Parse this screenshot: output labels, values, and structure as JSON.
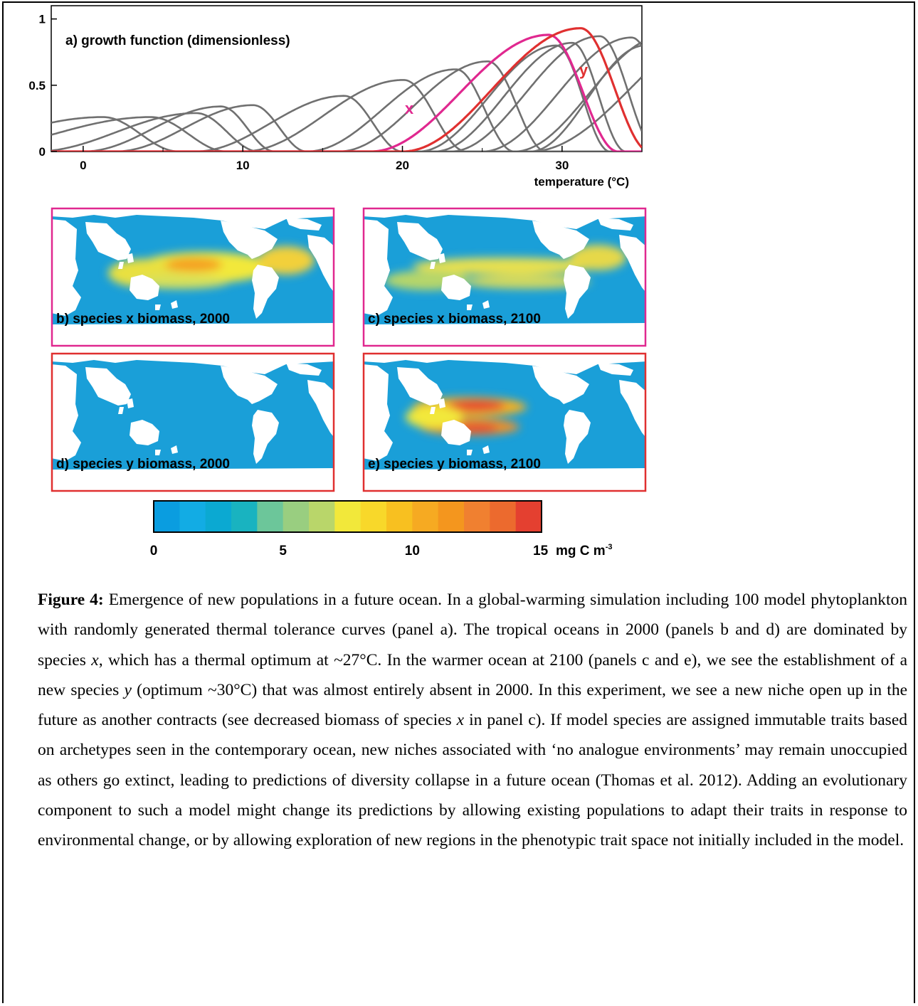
{
  "colors": {
    "gray_curve": "#707070",
    "species_x": "#e0288f",
    "species_y": "#e03030",
    "ocean": "#1a9fd8"
  },
  "chart_data": {
    "type": "line",
    "title": "a) growth function (dimensionless)",
    "xlabel": "temperature (°C)",
    "ylabel": "",
    "xlim": [
      -2,
      35
    ],
    "ylim": [
      0,
      1.1
    ],
    "x_ticks": [
      {
        "value": 0,
        "label": "0"
      },
      {
        "value": 10,
        "label": "10"
      },
      {
        "value": 20,
        "label": "20"
      },
      {
        "value": 30,
        "label": "30"
      }
    ],
    "y_ticks": [
      {
        "value": 0,
        "label": "0"
      },
      {
        "value": 0.5,
        "label": "0.5"
      },
      {
        "value": 1,
        "label": "1"
      }
    ],
    "curves": [
      {
        "label": "",
        "color": "gray",
        "lo": -11,
        "hi": 6,
        "peak": 0.26
      },
      {
        "label": "",
        "color": "gray",
        "lo": -8,
        "hi": 9,
        "peak": 0.26
      },
      {
        "label": "",
        "color": "gray",
        "lo": -3,
        "hi": 11,
        "peak": 0.29
      },
      {
        "label": "",
        "color": "gray",
        "lo": 0,
        "hi": 12,
        "peak": 0.34
      },
      {
        "label": "",
        "color": "gray",
        "lo": 2,
        "hi": 14,
        "peak": 0.35
      },
      {
        "label": "",
        "color": "gray",
        "lo": 7,
        "hi": 20,
        "peak": 0.42
      },
      {
        "label": "",
        "color": "gray",
        "lo": 10,
        "hi": 24,
        "peak": 0.54
      },
      {
        "label": "",
        "color": "gray",
        "lo": 14,
        "hi": 27,
        "peak": 0.62
      },
      {
        "label": "",
        "color": "gray",
        "lo": 16,
        "hi": 29,
        "peak": 0.68
      },
      {
        "label": "",
        "color": "gray",
        "lo": 21,
        "hi": 33,
        "peak": 0.8
      },
      {
        "label": "",
        "color": "gray",
        "lo": 22,
        "hi": 34,
        "peak": 0.82
      },
      {
        "label": "",
        "color": "gray",
        "lo": 23,
        "hi": 36,
        "peak": 0.87
      },
      {
        "label": "",
        "color": "gray",
        "lo": 25,
        "hi": 38,
        "peak": 0.86
      },
      {
        "label": "",
        "color": "gray",
        "lo": 27,
        "hi": 40,
        "peak": 0.87
      },
      {
        "label": "",
        "color": "gray",
        "lo": 28,
        "hi": 46,
        "peak": 1.0
      },
      {
        "label": "",
        "color": "gray",
        "lo": 28,
        "hi": 38,
        "peak": 0.8
      },
      {
        "label": "x",
        "color": "species_x",
        "lo": 18,
        "hi": 33.5,
        "peak": 0.88
      },
      {
        "label": "y",
        "color": "species_y",
        "lo": 20,
        "hi": 35.5,
        "peak": 0.93
      }
    ]
  },
  "maps": [
    {
      "label": "b) species x biomass, 2000",
      "border": "species_x",
      "species": "x",
      "year": "2000"
    },
    {
      "label": "c) species x biomass, 2100",
      "border": "species_x",
      "species": "x",
      "year": "2100"
    },
    {
      "label": "d) species y biomass, 2000",
      "border": "species_y",
      "species": "y",
      "year": "2000"
    },
    {
      "label": "e) species y biomass, 2100",
      "border": "species_y",
      "species": "y",
      "year": "2100"
    }
  ],
  "colorbar": {
    "range": [
      0,
      15
    ],
    "unit_label": "mg C m",
    "unit_exponent": "-3",
    "ticks": [
      {
        "value": 0,
        "label": "0"
      },
      {
        "value": 5,
        "label": "5"
      },
      {
        "value": 10,
        "label": "10"
      },
      {
        "value": 15,
        "label": "15"
      }
    ],
    "colors": [
      "#0a9de0",
      "#12ace4",
      "#0ba9d2",
      "#19b3c0",
      "#6cc69a",
      "#99ce80",
      "#b9d66a",
      "#f2e83a",
      "#f8d82a",
      "#f8c020",
      "#f6aa22",
      "#f4961e",
      "#f08030",
      "#ec6a2e",
      "#e44030"
    ]
  },
  "caption": {
    "figure_label": "Figure 4:",
    "s1": " Emergence of new populations in a future ocean. In a global-warming simulation including 100 model phytoplankton with randomly generated thermal tolerance curves (panel a). The tropical oceans in 2000 (panels b and d) are dominated by species ",
    "x1": "x",
    "s2": ", which has a thermal optimum at ~27°C. In the warmer ocean at 2100 (panels c and e), we see the establishment of a new species ",
    "y1": "y",
    "s3": " (optimum ~30°C) that was almost entirely absent in 2000. In this experiment, we see a new niche open up in the future as another contracts (see decreased biomass of species ",
    "x2": "x",
    "s4": " in panel c). If model species are assigned immutable traits based on archetypes seen in the contemporary ocean, new niches associated with ‘no analogue environments’ may remain unoccupied as others go extinct, leading to predictions of diversity collapse in a future ocean (Thomas et al. 2012). Adding an evolutionary component to such a model might change its predictions by allowing existing populations to adapt their traits in response to environmental change, or by allowing exploration of new regions in the phenotypic trait space not initially included in the model."
  }
}
